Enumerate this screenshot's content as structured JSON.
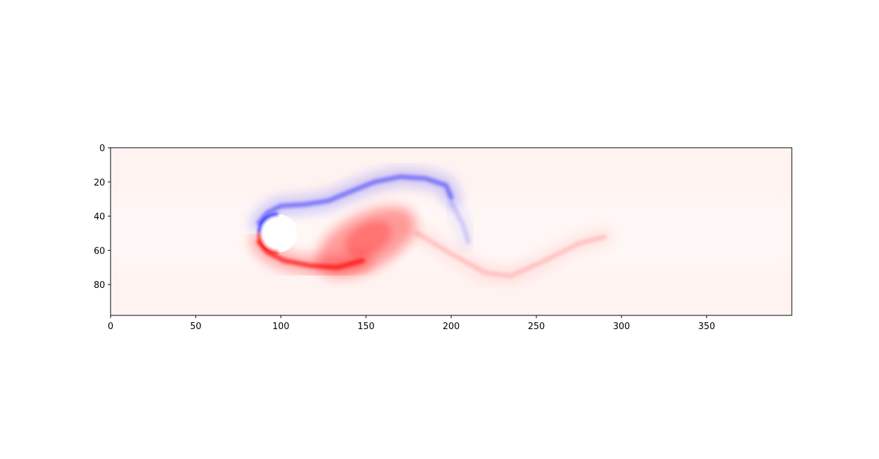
{
  "chart_data": {
    "type": "heatmap",
    "title": "",
    "xlabel": "",
    "ylabel": "",
    "colormap": "bwr",
    "colors": {
      "negative": "#0000ff",
      "zero": "#ffffff",
      "positive": "#ff0000",
      "background_tint": "#fff3f1"
    },
    "xlim": [
      0,
      400
    ],
    "ylim": [
      98,
      0
    ],
    "x_ticks": [
      0,
      50,
      100,
      150,
      200,
      250,
      300,
      350
    ],
    "x_tick_labels": [
      "0",
      "50",
      "100",
      "150",
      "200",
      "250",
      "300",
      "350"
    ],
    "y_ticks": [
      0,
      20,
      40,
      60,
      80
    ],
    "y_tick_labels": [
      "0",
      "20",
      "40",
      "60",
      "80"
    ],
    "grid": false,
    "obstacle": {
      "shape": "circle",
      "center": [
        100,
        50
      ],
      "radius": 10
    },
    "features": [
      {
        "name": "upper shear layer (negative vorticity)",
        "sign": "negative",
        "path": [
          [
            87,
            44
          ],
          [
            92,
            38
          ],
          [
            100,
            34
          ],
          [
            115,
            33
          ],
          [
            128,
            31
          ],
          [
            140,
            26
          ],
          [
            155,
            20
          ],
          [
            170,
            17
          ],
          [
            185,
            18
          ],
          [
            197,
            22
          ],
          [
            200,
            29
          ]
        ],
        "strength": 0.55
      },
      {
        "name": "lower shear layer (positive vorticity)",
        "sign": "positive",
        "path": [
          [
            87,
            55
          ],
          [
            92,
            61
          ],
          [
            102,
            66
          ],
          [
            118,
            69
          ],
          [
            133,
            70
          ],
          [
            148,
            66
          ]
        ],
        "strength": 0.9
      },
      {
        "name": "shed positive vortex",
        "sign": "positive",
        "center": [
          150,
          55
        ],
        "radii": [
          32,
          16
        ],
        "strength": 0.38
      },
      {
        "name": "negative trailing tail",
        "sign": "negative",
        "path": [
          [
            200,
            32
          ],
          [
            207,
            45
          ],
          [
            210,
            55
          ]
        ],
        "strength": 0.18
      },
      {
        "name": "positive trailing tail",
        "sign": "positive",
        "path": [
          [
            180,
            50
          ],
          [
            200,
            62
          ],
          [
            220,
            73
          ],
          [
            235,
            75
          ],
          [
            255,
            66
          ],
          [
            275,
            56
          ],
          [
            290,
            52
          ]
        ],
        "strength": 0.2
      }
    ]
  }
}
